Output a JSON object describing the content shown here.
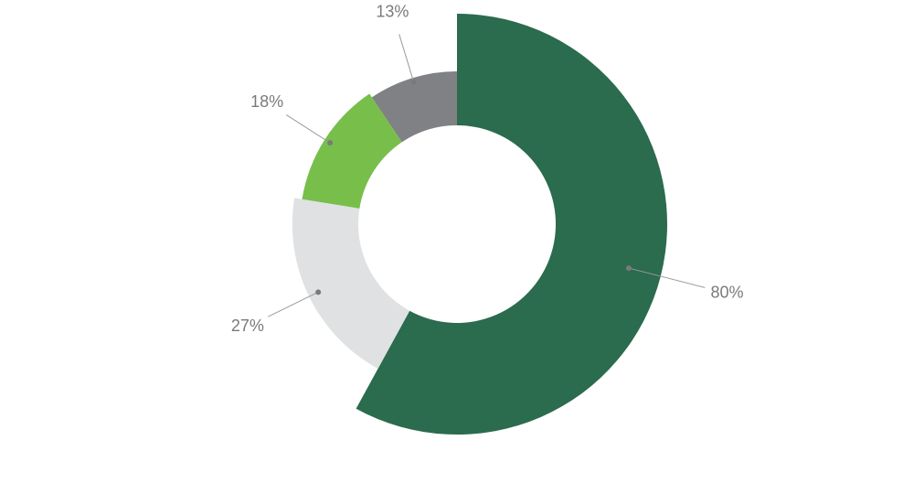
{
  "chart_data": {
    "type": "donut",
    "values": [
      80,
      27,
      18,
      13
    ],
    "value_labels": [
      "80%",
      "27%",
      "18%",
      "13%"
    ],
    "colors": [
      "#2b6b4e",
      "#e0e1e2",
      "#77bf4a",
      "#808184"
    ]
  }
}
